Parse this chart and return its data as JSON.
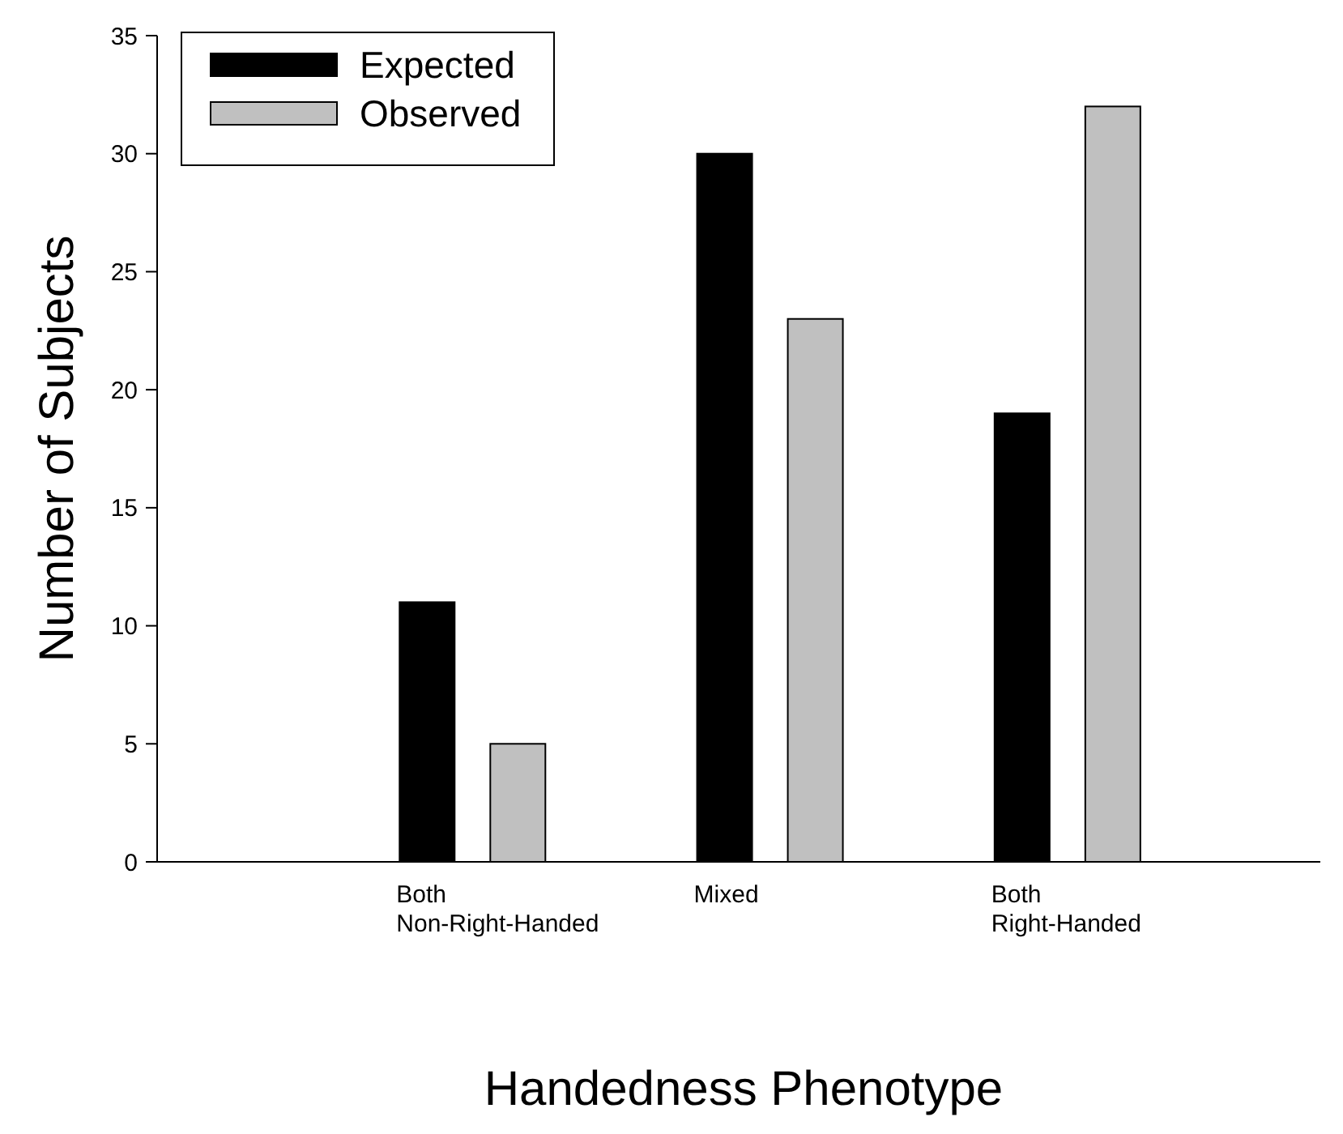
{
  "chart_data": {
    "type": "bar",
    "xlabel": "Handedness Phenotype",
    "ylabel": "Number of Subjects",
    "categories": [
      "Both\nNon-Right-Handed",
      "Mixed",
      "Both\nRight-Handed"
    ],
    "series": [
      {
        "name": "Expected",
        "color": "#000000",
        "values": [
          11,
          30,
          19
        ]
      },
      {
        "name": "Observed",
        "color": "#c0c0c0",
        "values": [
          5,
          23,
          32
        ]
      }
    ],
    "ylim": [
      0,
      35
    ],
    "yticks": [
      0,
      5,
      10,
      15,
      20,
      25,
      30,
      35
    ],
    "grid": false,
    "legend": "top left"
  }
}
